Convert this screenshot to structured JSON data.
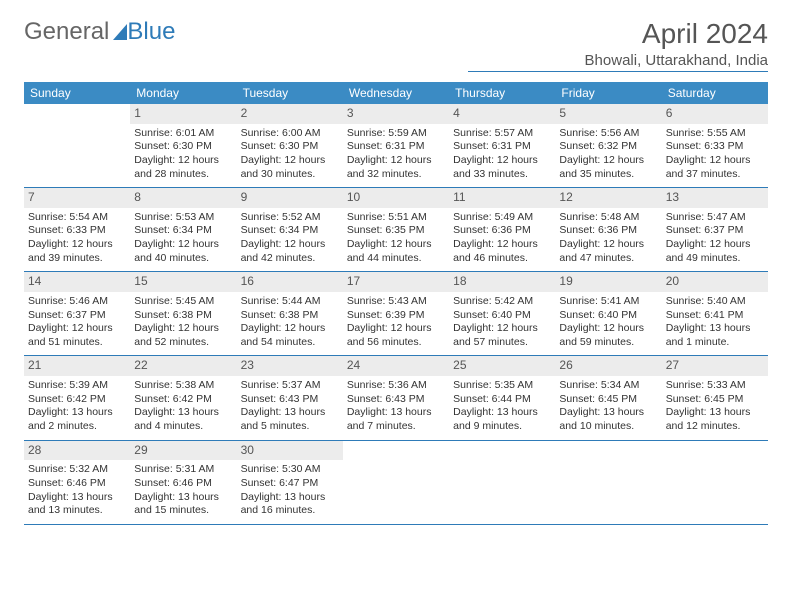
{
  "logo": {
    "part1": "General",
    "part2": "Blue"
  },
  "title": "April 2024",
  "location": "Bhowali, Uttarakhand, India",
  "colors": {
    "header_bg": "#3b8bc4",
    "accent_line": "#2e7bb8",
    "daynum_bg": "#ececec",
    "text": "#333333",
    "background": "#ffffff"
  },
  "day_names": [
    "Sunday",
    "Monday",
    "Tuesday",
    "Wednesday",
    "Thursday",
    "Friday",
    "Saturday"
  ],
  "weeks": [
    [
      {
        "empty": true
      },
      {
        "day": "1",
        "sunrise": "Sunrise: 6:01 AM",
        "sunset": "Sunset: 6:30 PM",
        "daylight": "Daylight: 12 hours and 28 minutes."
      },
      {
        "day": "2",
        "sunrise": "Sunrise: 6:00 AM",
        "sunset": "Sunset: 6:30 PM",
        "daylight": "Daylight: 12 hours and 30 minutes."
      },
      {
        "day": "3",
        "sunrise": "Sunrise: 5:59 AM",
        "sunset": "Sunset: 6:31 PM",
        "daylight": "Daylight: 12 hours and 32 minutes."
      },
      {
        "day": "4",
        "sunrise": "Sunrise: 5:57 AM",
        "sunset": "Sunset: 6:31 PM",
        "daylight": "Daylight: 12 hours and 33 minutes."
      },
      {
        "day": "5",
        "sunrise": "Sunrise: 5:56 AM",
        "sunset": "Sunset: 6:32 PM",
        "daylight": "Daylight: 12 hours and 35 minutes."
      },
      {
        "day": "6",
        "sunrise": "Sunrise: 5:55 AM",
        "sunset": "Sunset: 6:33 PM",
        "daylight": "Daylight: 12 hours and 37 minutes."
      }
    ],
    [
      {
        "day": "7",
        "sunrise": "Sunrise: 5:54 AM",
        "sunset": "Sunset: 6:33 PM",
        "daylight": "Daylight: 12 hours and 39 minutes."
      },
      {
        "day": "8",
        "sunrise": "Sunrise: 5:53 AM",
        "sunset": "Sunset: 6:34 PM",
        "daylight": "Daylight: 12 hours and 40 minutes."
      },
      {
        "day": "9",
        "sunrise": "Sunrise: 5:52 AM",
        "sunset": "Sunset: 6:34 PM",
        "daylight": "Daylight: 12 hours and 42 minutes."
      },
      {
        "day": "10",
        "sunrise": "Sunrise: 5:51 AM",
        "sunset": "Sunset: 6:35 PM",
        "daylight": "Daylight: 12 hours and 44 minutes."
      },
      {
        "day": "11",
        "sunrise": "Sunrise: 5:49 AM",
        "sunset": "Sunset: 6:36 PM",
        "daylight": "Daylight: 12 hours and 46 minutes."
      },
      {
        "day": "12",
        "sunrise": "Sunrise: 5:48 AM",
        "sunset": "Sunset: 6:36 PM",
        "daylight": "Daylight: 12 hours and 47 minutes."
      },
      {
        "day": "13",
        "sunrise": "Sunrise: 5:47 AM",
        "sunset": "Sunset: 6:37 PM",
        "daylight": "Daylight: 12 hours and 49 minutes."
      }
    ],
    [
      {
        "day": "14",
        "sunrise": "Sunrise: 5:46 AM",
        "sunset": "Sunset: 6:37 PM",
        "daylight": "Daylight: 12 hours and 51 minutes."
      },
      {
        "day": "15",
        "sunrise": "Sunrise: 5:45 AM",
        "sunset": "Sunset: 6:38 PM",
        "daylight": "Daylight: 12 hours and 52 minutes."
      },
      {
        "day": "16",
        "sunrise": "Sunrise: 5:44 AM",
        "sunset": "Sunset: 6:38 PM",
        "daylight": "Daylight: 12 hours and 54 minutes."
      },
      {
        "day": "17",
        "sunrise": "Sunrise: 5:43 AM",
        "sunset": "Sunset: 6:39 PM",
        "daylight": "Daylight: 12 hours and 56 minutes."
      },
      {
        "day": "18",
        "sunrise": "Sunrise: 5:42 AM",
        "sunset": "Sunset: 6:40 PM",
        "daylight": "Daylight: 12 hours and 57 minutes."
      },
      {
        "day": "19",
        "sunrise": "Sunrise: 5:41 AM",
        "sunset": "Sunset: 6:40 PM",
        "daylight": "Daylight: 12 hours and 59 minutes."
      },
      {
        "day": "20",
        "sunrise": "Sunrise: 5:40 AM",
        "sunset": "Sunset: 6:41 PM",
        "daylight": "Daylight: 13 hours and 1 minute."
      }
    ],
    [
      {
        "day": "21",
        "sunrise": "Sunrise: 5:39 AM",
        "sunset": "Sunset: 6:42 PM",
        "daylight": "Daylight: 13 hours and 2 minutes."
      },
      {
        "day": "22",
        "sunrise": "Sunrise: 5:38 AM",
        "sunset": "Sunset: 6:42 PM",
        "daylight": "Daylight: 13 hours and 4 minutes."
      },
      {
        "day": "23",
        "sunrise": "Sunrise: 5:37 AM",
        "sunset": "Sunset: 6:43 PM",
        "daylight": "Daylight: 13 hours and 5 minutes."
      },
      {
        "day": "24",
        "sunrise": "Sunrise: 5:36 AM",
        "sunset": "Sunset: 6:43 PM",
        "daylight": "Daylight: 13 hours and 7 minutes."
      },
      {
        "day": "25",
        "sunrise": "Sunrise: 5:35 AM",
        "sunset": "Sunset: 6:44 PM",
        "daylight": "Daylight: 13 hours and 9 minutes."
      },
      {
        "day": "26",
        "sunrise": "Sunrise: 5:34 AM",
        "sunset": "Sunset: 6:45 PM",
        "daylight": "Daylight: 13 hours and 10 minutes."
      },
      {
        "day": "27",
        "sunrise": "Sunrise: 5:33 AM",
        "sunset": "Sunset: 6:45 PM",
        "daylight": "Daylight: 13 hours and 12 minutes."
      }
    ],
    [
      {
        "day": "28",
        "sunrise": "Sunrise: 5:32 AM",
        "sunset": "Sunset: 6:46 PM",
        "daylight": "Daylight: 13 hours and 13 minutes."
      },
      {
        "day": "29",
        "sunrise": "Sunrise: 5:31 AM",
        "sunset": "Sunset: 6:46 PM",
        "daylight": "Daylight: 13 hours and 15 minutes."
      },
      {
        "day": "30",
        "sunrise": "Sunrise: 5:30 AM",
        "sunset": "Sunset: 6:47 PM",
        "daylight": "Daylight: 13 hours and 16 minutes."
      },
      {
        "empty": true
      },
      {
        "empty": true
      },
      {
        "empty": true
      },
      {
        "empty": true
      }
    ]
  ]
}
